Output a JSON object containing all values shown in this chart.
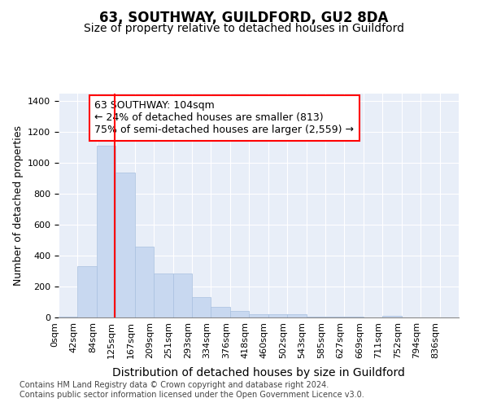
{
  "title1": "63, SOUTHWAY, GUILDFORD, GU2 8DA",
  "title2": "Size of property relative to detached houses in Guildford",
  "xlabel": "Distribution of detached houses by size in Guildford",
  "ylabel": "Number of detached properties",
  "bar_color": "#c8d8f0",
  "bar_edge_color": "#a8c0e0",
  "categories": [
    "0sqm",
    "42sqm",
    "84sqm",
    "125sqm",
    "167sqm",
    "209sqm",
    "251sqm",
    "293sqm",
    "334sqm",
    "376sqm",
    "418sqm",
    "460sqm",
    "502sqm",
    "543sqm",
    "585sqm",
    "627sqm",
    "669sqm",
    "711sqm",
    "752sqm",
    "794sqm",
    "836sqm"
  ],
  "values": [
    5,
    330,
    1110,
    940,
    460,
    285,
    285,
    130,
    70,
    40,
    20,
    20,
    20,
    5,
    5,
    5,
    0,
    10,
    0,
    0,
    0
  ],
  "ylim": [
    0,
    1450
  ],
  "yticks": [
    0,
    200,
    400,
    600,
    800,
    1000,
    1200,
    1400
  ],
  "property_label": "63 SOUTHWAY: 104sqm",
  "annotation_line1": "← 24% of detached houses are smaller (813)",
  "annotation_line2": "75% of semi-detached houses are larger (2,559) →",
  "red_line_x": 2.95,
  "footnote": "Contains HM Land Registry data © Crown copyright and database right 2024.\nContains public sector information licensed under the Open Government Licence v3.0.",
  "background_color": "#ffffff",
  "plot_bg_color": "#e8eef8",
  "grid_color": "#ffffff",
  "title1_fontsize": 12,
  "title2_fontsize": 10,
  "xlabel_fontsize": 10,
  "ylabel_fontsize": 9,
  "tick_fontsize": 8,
  "annotation_fontsize": 9,
  "footnote_fontsize": 7
}
